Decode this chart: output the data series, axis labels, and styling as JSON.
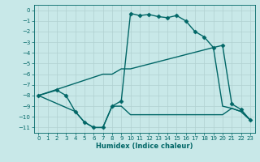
{
  "xlabel": "Humidex (Indice chaleur)",
  "background_color": "#c8e8e8",
  "grid_color": "#b0d0d0",
  "line_color": "#006666",
  "xlim": [
    -0.5,
    23.5
  ],
  "ylim": [
    -11.5,
    0.5
  ],
  "xticks": [
    0,
    1,
    2,
    3,
    4,
    5,
    6,
    7,
    8,
    9,
    10,
    11,
    12,
    13,
    14,
    15,
    16,
    17,
    18,
    19,
    20,
    21,
    22,
    23
  ],
  "yticks": [
    0,
    -1,
    -2,
    -3,
    -4,
    -5,
    -6,
    -7,
    -8,
    -9,
    -10,
    -11
  ],
  "series": [
    {
      "x": [
        0,
        2,
        3,
        4,
        5,
        6,
        7,
        8,
        9,
        10,
        11,
        12,
        13,
        14,
        15,
        16,
        17,
        18,
        19,
        20,
        21,
        22,
        23
      ],
      "y": [
        -8,
        -7.5,
        -8,
        -9.5,
        -10.5,
        -11,
        -11,
        -9,
        -8.5,
        -0.3,
        -0.5,
        -0.4,
        -0.6,
        -0.7,
        -0.5,
        -1.0,
        -2.0,
        -2.5,
        -3.5,
        -3.3,
        -8.8,
        -9.3,
        -10.3
      ],
      "marker": "D",
      "markersize": 2.5,
      "linewidth": 1.0,
      "has_marker": true
    },
    {
      "x": [
        0,
        7,
        8,
        9,
        10,
        19,
        20,
        21,
        22,
        23
      ],
      "y": [
        -8,
        -6.0,
        -6.0,
        -5.5,
        -5.5,
        -3.5,
        -9.0,
        -9.2,
        -9.5,
        -10.3
      ],
      "marker": null,
      "markersize": 0,
      "linewidth": 1.0,
      "has_marker": false
    },
    {
      "x": [
        0,
        4,
        5,
        6,
        7,
        8,
        9,
        10,
        19,
        20,
        21,
        22,
        23
      ],
      "y": [
        -8,
        -9.5,
        -10.5,
        -11,
        -11,
        -9,
        -9,
        -9.8,
        -9.8,
        -9.8,
        -9.2,
        -9.5,
        -10.3
      ],
      "marker": null,
      "markersize": 0,
      "linewidth": 1.0,
      "has_marker": false
    }
  ]
}
